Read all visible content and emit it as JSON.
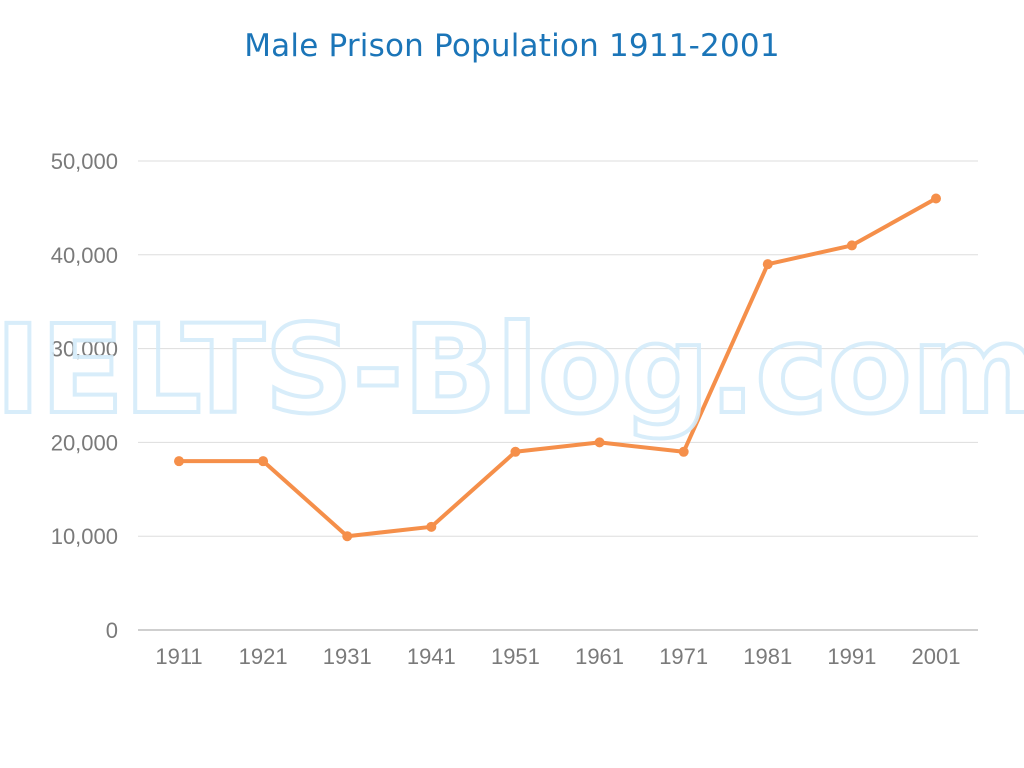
{
  "watermark": "IELTS-Blog.com",
  "colors": {
    "title": "#1b75b8",
    "line": "#f58f4a",
    "grid": "#dddddd",
    "axis": "#bfbfbf",
    "tick_text": "#7a7a7a",
    "watermark": "#d4ecfa"
  },
  "chart_data": {
    "type": "line",
    "title": "Male Prison Population 1911-2001",
    "xlabel": "",
    "ylabel": "",
    "categories": [
      "1911",
      "1921",
      "1931",
      "1941",
      "1951",
      "1961",
      "1971",
      "1981",
      "1991",
      "2001"
    ],
    "series": [
      {
        "values": [
          18000,
          18000,
          10000,
          11000,
          19000,
          20000,
          19000,
          39000,
          41000,
          46000
        ]
      }
    ],
    "ylim": [
      0,
      50000
    ],
    "yticks": [
      0,
      10000,
      20000,
      30000,
      40000,
      50000
    ],
    "ytick_labels": [
      "0",
      "10,000",
      "20,000",
      "30,000",
      "40,000",
      "50,000"
    ],
    "grid": true,
    "legend": "none"
  }
}
